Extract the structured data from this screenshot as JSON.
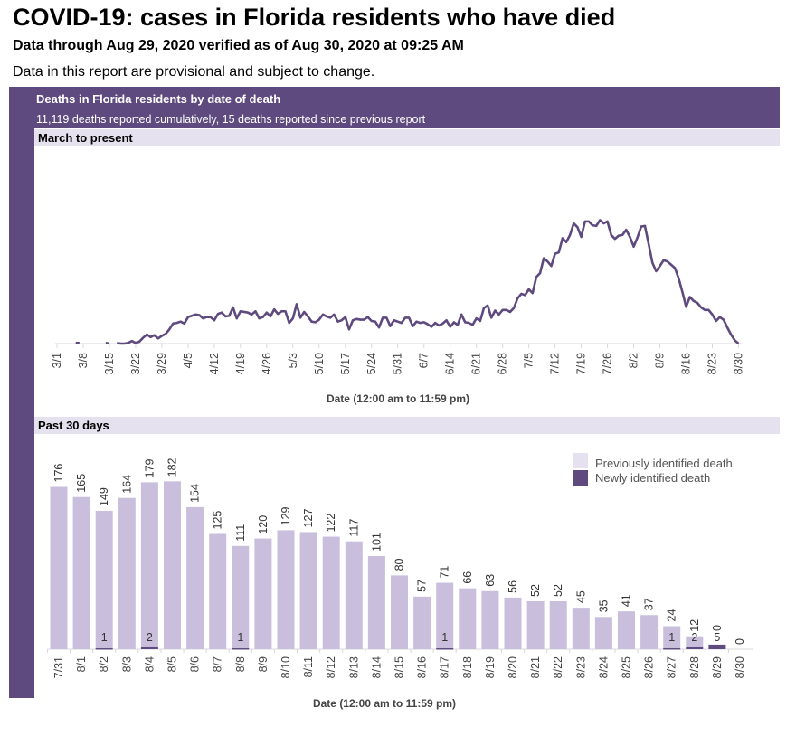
{
  "header": {
    "title": "COVID-19: cases in Florida residents who have died",
    "subtitle": "Data through Aug 29, 2020 verified as of Aug 30, 2020 at 09:25 AM",
    "note": "Data in this report are provisional and subject to change."
  },
  "panel": {
    "title": "Deaths in Florida residents by date of death",
    "summary": "11,119 deaths reported cumulatively, 15 deaths reported since previous report",
    "section1": "March to present",
    "section2": "Past 30 days"
  },
  "colors": {
    "brand": "#5e4a7e",
    "line": "#5e4a7e",
    "previous": "#c9bfdc",
    "new": "#5e4a7e",
    "section": "#e6e1ee"
  },
  "chart_data": [
    {
      "type": "line",
      "title": "March to present",
      "xlabel": "Date (12:00 am to 11:59 pm)",
      "x_range": [
        "3/1",
        "8/30"
      ],
      "x_tick_labels": [
        "3/1",
        "3/8",
        "3/15",
        "3/22",
        "3/29",
        "4/5",
        "4/12",
        "4/19",
        "4/26",
        "5/3",
        "5/10",
        "5/17",
        "5/24",
        "5/31",
        "6/7",
        "6/14",
        "6/21",
        "6/28",
        "7/5",
        "7/12",
        "7/19",
        "7/26",
        "8/2",
        "8/9",
        "8/16",
        "8/23",
        "8/30"
      ],
      "grid": false,
      "values": [
        null,
        null,
        null,
        null,
        null,
        1,
        1,
        null,
        null,
        null,
        null,
        null,
        null,
        1,
        0,
        null,
        1,
        0,
        0,
        1,
        4,
        1,
        3,
        9,
        14,
        10,
        13,
        8,
        12,
        15,
        22,
        31,
        32,
        34,
        31,
        41,
        43,
        45,
        44,
        39,
        41,
        41,
        36,
        46,
        48,
        42,
        43,
        56,
        39,
        50,
        49,
        48,
        45,
        50,
        39,
        41,
        48,
        42,
        53,
        46,
        50,
        50,
        32,
        39,
        61,
        40,
        49,
        42,
        34,
        33,
        37,
        45,
        42,
        40,
        45,
        34,
        36,
        41,
        22,
        36,
        38,
        37,
        37,
        41,
        35,
        34,
        25,
        40,
        40,
        27,
        36,
        34,
        32,
        40,
        40,
        27,
        34,
        32,
        33,
        30,
        26,
        32,
        28,
        31,
        36,
        26,
        33,
        29,
        45,
        33,
        32,
        29,
        39,
        35,
        55,
        59,
        40,
        51,
        45,
        52,
        52,
        49,
        55,
        70,
        77,
        75,
        84,
        78,
        103,
        109,
        132,
        127,
        120,
        139,
        141,
        163,
        157,
        168,
        186,
        180,
        165,
        189,
        189,
        183,
        182,
        191,
        186,
        189,
        168,
        162,
        167,
        168,
        176,
        165,
        150,
        164,
        181,
        182,
        154,
        125,
        112,
        120,
        129,
        127,
        122,
        117,
        101,
        80,
        57,
        72,
        66,
        63,
        56,
        52,
        52,
        45,
        35,
        41,
        37,
        25,
        14,
        5,
        0
      ]
    },
    {
      "type": "bar",
      "stacked": true,
      "title": "Past 30 days",
      "xlabel": "Date (12:00 am to 11:59 pm)",
      "legend_position": "top-right",
      "categories": [
        "7/31",
        "8/1",
        "8/2",
        "8/3",
        "8/4",
        "8/5",
        "8/6",
        "8/7",
        "8/8",
        "8/9",
        "8/10",
        "8/11",
        "8/12",
        "8/13",
        "8/14",
        "8/15",
        "8/16",
        "8/17",
        "8/18",
        "8/19",
        "8/20",
        "8/21",
        "8/22",
        "8/23",
        "8/24",
        "8/25",
        "8/26",
        "8/27",
        "8/28",
        "8/29",
        "8/30"
      ],
      "series": [
        {
          "name": "Previously identified death",
          "values": [
            176,
            165,
            149,
            164,
            179,
            182,
            154,
            125,
            111,
            120,
            129,
            127,
            122,
            117,
            101,
            80,
            57,
            71,
            66,
            63,
            56,
            52,
            52,
            45,
            35,
            41,
            37,
            24,
            12,
            0,
            0
          ]
        },
        {
          "name": "Newly identified death",
          "values": [
            0,
            0,
            1,
            0,
            2,
            0,
            0,
            0,
            1,
            0,
            0,
            0,
            0,
            0,
            0,
            0,
            0,
            1,
            0,
            0,
            0,
            0,
            0,
            0,
            0,
            0,
            0,
            1,
            2,
            5,
            0
          ]
        }
      ]
    }
  ]
}
